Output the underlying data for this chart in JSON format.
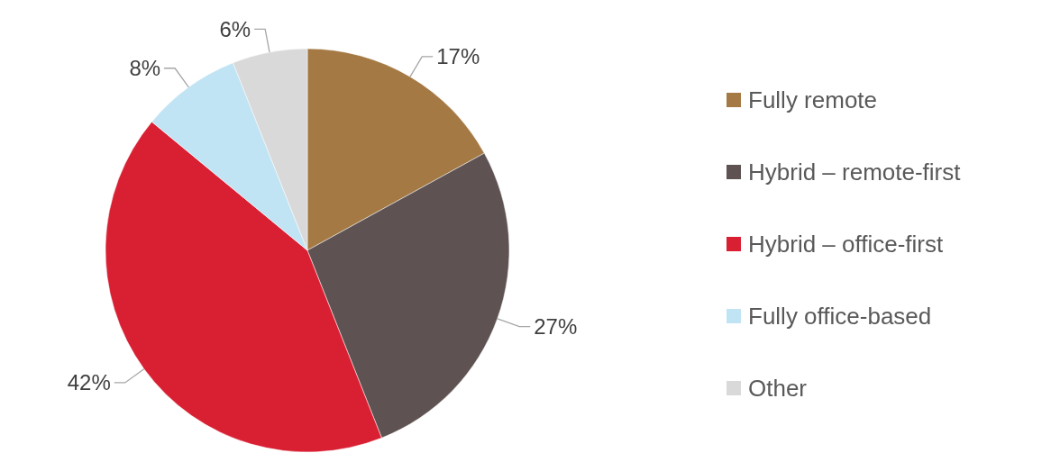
{
  "chart_data": {
    "type": "pie",
    "categories": [
      "Fully remote",
      "Hybrid – remote-first",
      "Hybrid – office-first",
      "Fully office-based",
      "Other"
    ],
    "values": [
      17,
      27,
      42,
      8,
      6
    ],
    "colors": [
      "#a57944",
      "#5e5352",
      "#d92033",
      "#c1e4f4",
      "#d9d9d9"
    ],
    "value_labels": [
      "17%",
      "27%",
      "42%",
      "8%",
      "6%"
    ],
    "legend": "right"
  }
}
